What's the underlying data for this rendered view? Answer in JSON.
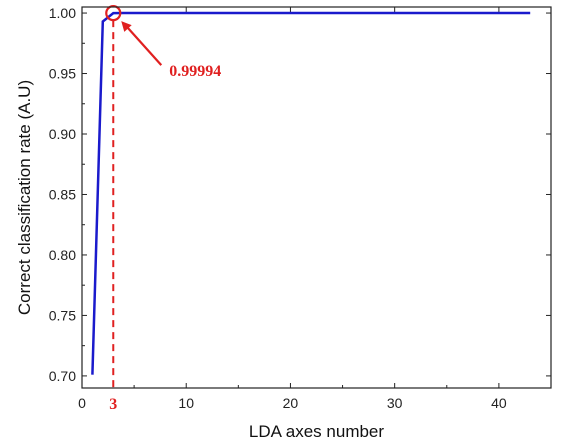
{
  "chart_data": {
    "type": "line",
    "title": "",
    "xlabel": "LDA axes number",
    "ylabel": "Correct classification rate (A.U)",
    "xlim": [
      0,
      45
    ],
    "ylim": [
      0.69,
      1.005
    ],
    "x_ticks": [
      0,
      10,
      20,
      30,
      40
    ],
    "y_ticks": [
      0.7,
      0.75,
      0.8,
      0.85,
      0.9,
      0.95,
      1.0
    ],
    "x_tick_labels": [
      "0",
      "10",
      "20",
      "30",
      "40"
    ],
    "y_tick_labels": [
      "0.70",
      "0.75",
      "0.80",
      "0.85",
      "0.90",
      "0.95",
      "1.00"
    ],
    "series": [
      {
        "color": "#1a1acc",
        "points": [
          [
            1,
            0.701
          ],
          [
            2,
            0.993
          ],
          [
            3,
            0.99994
          ],
          [
            4,
            1.0
          ],
          [
            5,
            1.0
          ],
          [
            10,
            1.0
          ],
          [
            20,
            1.0
          ],
          [
            30,
            1.0
          ],
          [
            40,
            1.0
          ],
          [
            43,
            1.0
          ]
        ]
      }
    ],
    "grid": false,
    "annotations": [
      {
        "type": "circle",
        "x": 3,
        "y": 0.99994,
        "color": "#e02020"
      },
      {
        "type": "arrow-label",
        "text": "0.99994",
        "x": 3,
        "y": 0.99994,
        "color": "#e02020"
      },
      {
        "type": "vline-dashed",
        "x": 3,
        "label": "3",
        "color": "#e02020"
      }
    ]
  }
}
